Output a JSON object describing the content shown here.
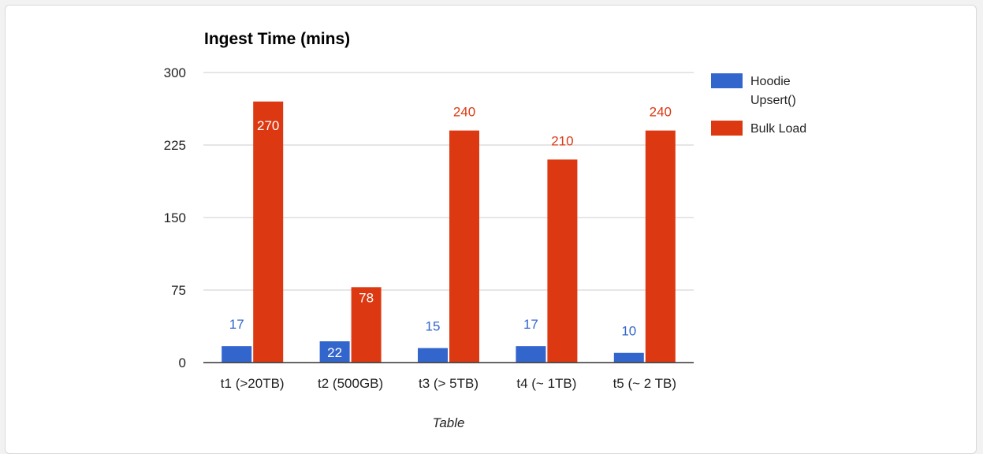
{
  "chart_data": {
    "type": "bar",
    "title": "Ingest Time (mins)",
    "xlabel": "Table",
    "ylabel": "",
    "ylim": [
      0,
      300
    ],
    "yticks": [
      0,
      75,
      150,
      225,
      300
    ],
    "categories": [
      "t1 (>20TB)",
      "t2 (500GB)",
      "t3 (> 5TB)",
      "t4 (~ 1TB)",
      "t5 (~ 2 TB)"
    ],
    "series": [
      {
        "name": "Hoodie Upsert()",
        "legend_lines": [
          "Hoodie",
          "Upsert()"
        ],
        "color": "#3366cc",
        "values": [
          17,
          22,
          15,
          17,
          10
        ]
      },
      {
        "name": "Bulk Load",
        "legend_lines": [
          "Bulk Load"
        ],
        "color": "#dc3912",
        "values": [
          270,
          78,
          240,
          210,
          240
        ]
      }
    ],
    "grid": true,
    "legend": "right"
  }
}
